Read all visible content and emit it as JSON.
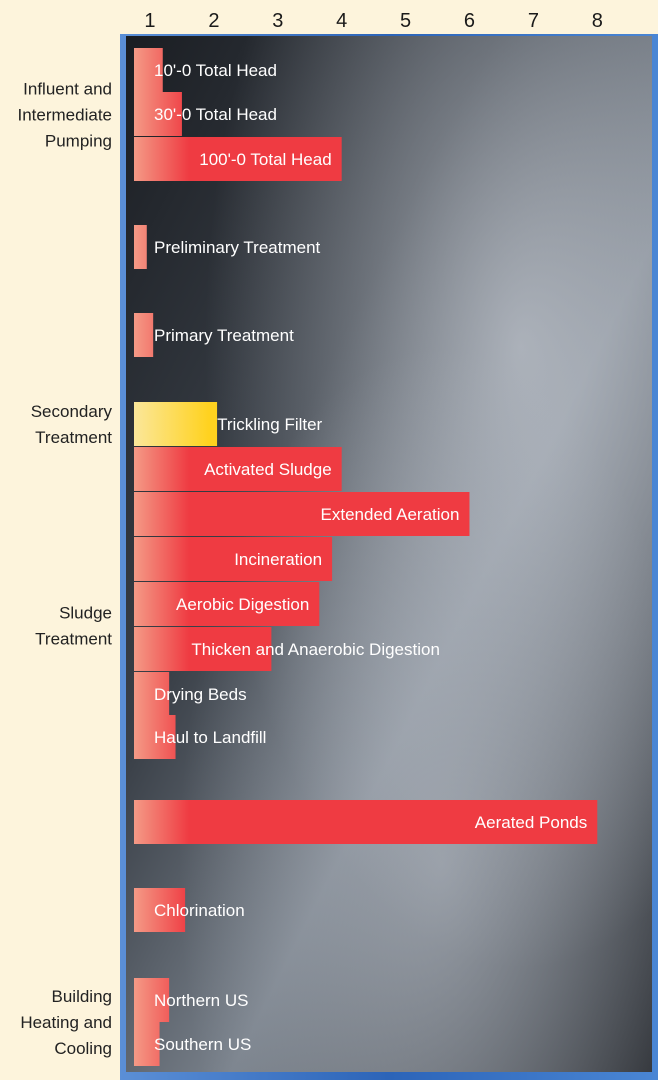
{
  "chart_data": {
    "type": "bar",
    "orientation": "horizontal",
    "x_ticks": [
      "1",
      "2",
      "3",
      "4",
      "5",
      "6",
      "7",
      "8"
    ],
    "xlim": [
      0.75,
      8
    ],
    "groups": [
      {
        "label": "Influent and Intermediate Pumping",
        "first": 0,
        "last": 2
      },
      {
        "label": "Secondary Treatment",
        "first": 5,
        "last": 5
      },
      {
        "label": "Sludge Treatment",
        "first": 7,
        "last": 12
      },
      {
        "label": "Building Heating and Cooling",
        "first": 15,
        "last": 16
      }
    ],
    "bars": [
      {
        "label": "10'-0 Total Head",
        "value": 1.2
      },
      {
        "label": "30'-0  Total Head",
        "value": 1.5
      },
      {
        "label": "100'-0  Total Head",
        "value": 4.0
      },
      {
        "label": "Preliminary Treatment",
        "value": 0.95
      },
      {
        "label": "Primary Treatment",
        "value": 1.05
      },
      {
        "label": "Trickling Filter",
        "value": 2.05,
        "highlight": true
      },
      {
        "label": "Activated Sludge",
        "value": 4.0
      },
      {
        "label": "Extended Aeration",
        "value": 6.0
      },
      {
        "label": "Incineration",
        "value": 3.85
      },
      {
        "label": "Aerobic Digestion",
        "value": 3.65
      },
      {
        "label": "Thicken and Anaerobic Digestion",
        "value": 2.9
      },
      {
        "label": "Drying Beds",
        "value": 1.3
      },
      {
        "label": "Haul to Landfill",
        "value": 1.4
      },
      {
        "label": "Aerated Ponds",
        "value": 8.0
      },
      {
        "label": "Chlorination",
        "value": 1.55
      },
      {
        "label": "Northern US",
        "value": 1.3
      },
      {
        "label": "Southern US",
        "value": 1.15
      }
    ],
    "colors": {
      "bar": "#ef3b42",
      "bar_fade": "#f49a86",
      "highlight": "#ffd21f",
      "highlight_fade": "#fbe79a",
      "background": "#fdf4dc",
      "frame": "#2f72c4"
    }
  }
}
